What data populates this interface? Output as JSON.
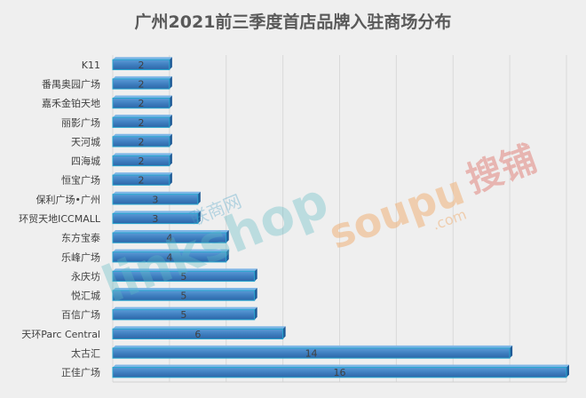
{
  "chart_data": {
    "type": "bar",
    "orientation": "horizontal",
    "title": "广州2021前三季度首店品牌入驻商场分布",
    "categories": [
      "K11",
      "番禺奥园广场",
      "嘉禾金铂天地",
      "丽影广场",
      "天河城",
      "四海城",
      "恒宝广场",
      "保利广场•广州",
      "环贸天地ICCMALL",
      "东方宝泰",
      "乐峰广场",
      "永庆坊",
      "悦汇城",
      "百信广场",
      "天环Parc Central",
      "太古汇",
      "正佳广场"
    ],
    "values": [
      2,
      2,
      2,
      2,
      2,
      2,
      2,
      3,
      3,
      4,
      4,
      5,
      5,
      5,
      6,
      14,
      16
    ],
    "xlim": [
      0,
      16
    ],
    "grid": true,
    "data_labels": true,
    "bar_color": "#3f7fc0",
    "bar_edge_color": "#27a6cf"
  },
  "watermarks": {
    "linkshop_cn": "联商网",
    "linkshop_en": "linkshop",
    "soupu": "soupu",
    "soupu_com": ".com",
    "soupu_cn": "搜铺"
  }
}
